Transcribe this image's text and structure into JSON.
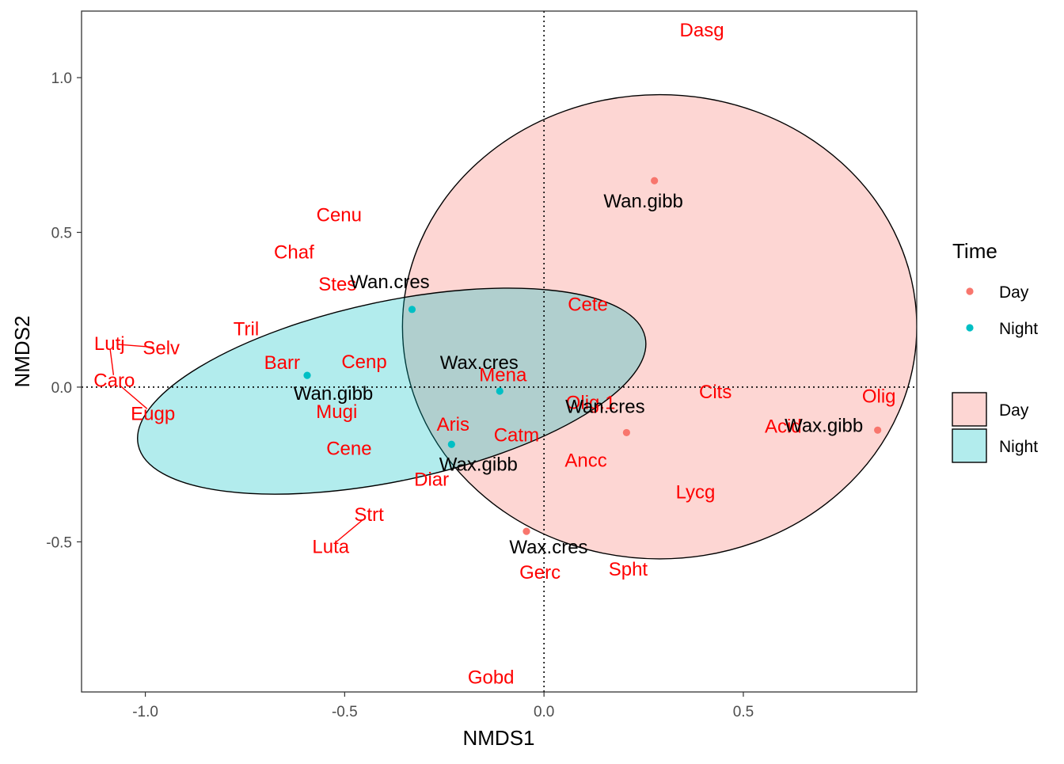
{
  "chart_data": {
    "type": "scatter",
    "xlabel": "NMDS1",
    "ylabel": "NMDS2",
    "xlim": [
      -1.16,
      0.935
    ],
    "ylim": [
      -0.985,
      1.215
    ],
    "x_ticks": [
      -1.0,
      -0.5,
      0.0,
      0.5
    ],
    "x_tick_labels": [
      "-1.0",
      "-0.5",
      "0.0",
      "0.5"
    ],
    "y_ticks": [
      -0.5,
      0.0,
      0.5,
      1.0
    ],
    "y_tick_labels": [
      "-0.5",
      "0.0",
      "0.5",
      "1.0"
    ],
    "grid": false,
    "reference_lines": {
      "x": 0,
      "y": 0,
      "style": "dotted"
    },
    "colors": {
      "day": "#F8766D",
      "night": "#00BFC4",
      "species_text": "#FF0000"
    },
    "sites": [
      {
        "label": "Wan.gibb",
        "group": "Day",
        "x": 0.277,
        "y": 0.667
      },
      {
        "label": "Wax.gibb",
        "group": "Day",
        "x": 0.837,
        "y": -0.139
      },
      {
        "label": "Wan.cres",
        "group": "Day",
        "x": 0.207,
        "y": -0.147
      },
      {
        "label": "Wax.cres",
        "group": "Day",
        "x": -0.044,
        "y": -0.466
      },
      {
        "label": "Wan.cres",
        "group": "Night",
        "x": -0.331,
        "y": 0.251
      },
      {
        "label": "Wan.gibb",
        "group": "Night",
        "x": -0.594,
        "y": 0.038
      },
      {
        "label": "Wax.cres",
        "group": "Night",
        "x": -0.111,
        "y": -0.013
      },
      {
        "label": "Wax.gibb",
        "group": "Night",
        "x": -0.232,
        "y": -0.185
      }
    ],
    "species": [
      {
        "label": "Dasg",
        "x": 0.396,
        "y": 1.153
      },
      {
        "label": "Cenu",
        "x": -0.514,
        "y": 0.556
      },
      {
        "label": "Chaf",
        "x": -0.627,
        "y": 0.436
      },
      {
        "label": "Stes",
        "x": -0.518,
        "y": 0.333
      },
      {
        "label": "Cete",
        "x": 0.11,
        "y": 0.267
      },
      {
        "label": "Tril",
        "x": -0.747,
        "y": 0.188
      },
      {
        "label": "Lutj",
        "x": -1.09,
        "y": 0.14
      },
      {
        "label": "Selv",
        "x": -0.96,
        "y": 0.127
      },
      {
        "label": "Barr",
        "x": -0.657,
        "y": 0.079
      },
      {
        "label": "Cenp",
        "x": -0.451,
        "y": 0.082
      },
      {
        "label": "Caro",
        "x": -1.078,
        "y": 0.021
      },
      {
        "label": "Mena",
        "x": -0.103,
        "y": 0.04
      },
      {
        "label": "Cits",
        "x": 0.43,
        "y": -0.016
      },
      {
        "label": "Olig",
        "x": 0.84,
        "y": -0.03
      },
      {
        "label": "Olig.1",
        "x": 0.117,
        "y": -0.05
      },
      {
        "label": "Eugp",
        "x": -0.981,
        "y": -0.086
      },
      {
        "label": "Mugi",
        "x": -0.52,
        "y": -0.08
      },
      {
        "label": "Aris",
        "x": -0.228,
        "y": -0.12
      },
      {
        "label": "Acid",
        "x": 0.6,
        "y": -0.127
      },
      {
        "label": "Catm",
        "x": -0.069,
        "y": -0.155
      },
      {
        "label": "Cene",
        "x": -0.489,
        "y": -0.199
      },
      {
        "label": "Ancc",
        "x": 0.105,
        "y": -0.237
      },
      {
        "label": "Diar",
        "x": -0.282,
        "y": -0.298
      },
      {
        "label": "Lycg",
        "x": 0.38,
        "y": -0.339
      },
      {
        "label": "Strt",
        "x": -0.439,
        "y": -0.412
      },
      {
        "label": "Luta",
        "x": -0.535,
        "y": -0.515
      },
      {
        "label": "Spht",
        "x": 0.211,
        "y": -0.588
      },
      {
        "label": "Gerc",
        "x": -0.01,
        "y": -0.599
      },
      {
        "label": "Gobd",
        "x": -0.133,
        "y": -0.938
      }
    ],
    "ellipses": [
      {
        "group": "Day",
        "cx": 0.29,
        "cy": 0.195,
        "rx": 0.645,
        "ry": 0.75,
        "angle": 0
      },
      {
        "group": "Night",
        "cx": -0.382,
        "cy": -0.013,
        "rx": 0.65,
        "ry": 0.29,
        "angle": 12
      }
    ],
    "legend": {
      "position": "right",
      "points_title": "Time",
      "points": [
        {
          "label": "Day",
          "color": "#F8766D"
        },
        {
          "label": "Night",
          "color": "#00BFC4"
        }
      ],
      "fills": [
        {
          "label": "Day",
          "color": "#F8766D"
        },
        {
          "label": "Night",
          "color": "#00BFC4"
        }
      ]
    }
  }
}
